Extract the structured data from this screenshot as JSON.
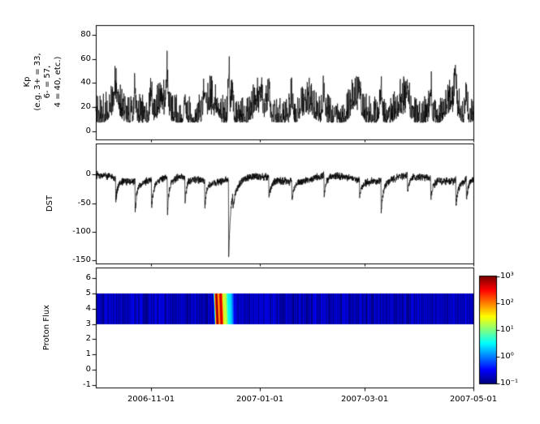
{
  "figure": {
    "background": "#ffffff",
    "frame_color": "#000000"
  },
  "chart_data": {
    "type": "multi-panel-time-series",
    "x_axis": {
      "domain_days": [
        0,
        212
      ],
      "ticks": [
        {
          "day": 31,
          "label": "2006-11-01"
        },
        {
          "day": 92,
          "label": "2007-01-01"
        },
        {
          "day": 151,
          "label": "2007-03-01"
        },
        {
          "day": 212,
          "label": "2007-05-01"
        }
      ]
    },
    "panels": [
      {
        "id": "kp",
        "type": "line",
        "ylabel": "Kp\n(e.g. 3+ = 33,\n6- = 57,\n4 = 40, etc.)",
        "ylim": [
          -7,
          88
        ],
        "yticks": [
          {
            "v": 80,
            "label": "80"
          },
          {
            "v": 60,
            "label": "60"
          },
          {
            "v": 40,
            "label": "40"
          },
          {
            "v": 20,
            "label": "20"
          },
          {
            "v": 0,
            "label": "0"
          }
        ],
        "line_color": "#000000",
        "samples_per_day": 8,
        "seed": 20061214,
        "base_level": 7,
        "recurrence_period_days": 27,
        "recurrence_phase_days": 4,
        "recurrence_amp": 13,
        "noise_amp": 24,
        "storms": [
          {
            "day": 11,
            "amp": 22,
            "width": 0.7
          },
          {
            "day": 22,
            "amp": 26,
            "width": 0.7
          },
          {
            "day": 31,
            "amp": 24,
            "width": 0.8
          },
          {
            "day": 40,
            "amp": 30,
            "width": 0.8
          },
          {
            "day": 50,
            "amp": 24,
            "width": 0.7
          },
          {
            "day": 61,
            "amp": 22,
            "width": 0.8
          },
          {
            "day": 74.7,
            "amp": 60,
            "width": 0.55
          },
          {
            "day": 76.5,
            "amp": 28,
            "width": 0.8
          },
          {
            "day": 97,
            "amp": 26,
            "width": 0.9
          },
          {
            "day": 110,
            "amp": 24,
            "width": 0.8
          },
          {
            "day": 128,
            "amp": 25,
            "width": 0.9
          },
          {
            "day": 148,
            "amp": 22,
            "width": 0.8
          },
          {
            "day": 160,
            "amp": 28,
            "width": 0.8
          },
          {
            "day": 175,
            "amp": 20,
            "width": 0.8
          },
          {
            "day": 188,
            "amp": 26,
            "width": 0.8
          },
          {
            "day": 202,
            "amp": 28,
            "width": 0.7
          },
          {
            "day": 208,
            "amp": 24,
            "width": 0.7
          }
        ]
      },
      {
        "id": "dst",
        "type": "line",
        "ylabel": "DST",
        "ylim": [
          -155,
          54
        ],
        "yticks": [
          {
            "v": 0,
            "label": "0"
          },
          {
            "v": -50,
            "label": "-50"
          },
          {
            "v": -100,
            "label": "-100"
          },
          {
            "v": -150,
            "label": "-150"
          }
        ],
        "line_color": "#000000",
        "samples_per_day": 12,
        "seed": 20061215,
        "base": -6,
        "noise_amp": 8,
        "storms": [
          {
            "day": 11.2,
            "min": -42,
            "recovery_days": 0.9
          },
          {
            "day": 22.1,
            "min": -55,
            "recovery_days": 0.8
          },
          {
            "day": 31.3,
            "min": -48,
            "recovery_days": 1.0
          },
          {
            "day": 40.2,
            "min": -65,
            "recovery_days": 0.9
          },
          {
            "day": 50.1,
            "min": -48,
            "recovery_days": 0.8
          },
          {
            "day": 61.2,
            "min": -44,
            "recovery_days": 1.0
          },
          {
            "day": 74.6,
            "min": -138,
            "recovery_days": 1.0
          },
          {
            "day": 77.0,
            "min": -30,
            "recovery_days": 1.2
          },
          {
            "day": 97.2,
            "min": -38,
            "recovery_days": 1.1
          },
          {
            "day": 110.1,
            "min": -34,
            "recovery_days": 1.0
          },
          {
            "day": 128.2,
            "min": -34,
            "recovery_days": 1.0
          },
          {
            "day": 148.1,
            "min": -32,
            "recovery_days": 1.0
          },
          {
            "day": 160.2,
            "min": -58,
            "recovery_days": 1.0
          },
          {
            "day": 175.0,
            "min": -28,
            "recovery_days": 0.9
          },
          {
            "day": 188.1,
            "min": -40,
            "recovery_days": 0.9
          },
          {
            "day": 202.2,
            "min": -48,
            "recovery_days": 0.9
          },
          {
            "day": 208.1,
            "min": -36,
            "recovery_days": 0.8
          }
        ]
      },
      {
        "id": "proton_flux",
        "type": "heatmap",
        "ylabel": "Proton Flux",
        "ylim": [
          -1.16,
          6.69
        ],
        "yticks": [
          {
            "v": 6,
            "label": "6"
          },
          {
            "v": 5,
            "label": "5"
          },
          {
            "v": 4,
            "label": "4"
          },
          {
            "v": 3,
            "label": "3"
          },
          {
            "v": 2,
            "label": "2"
          },
          {
            "v": 1,
            "label": "1"
          },
          {
            "v": 0,
            "label": "0"
          },
          {
            "v": -1,
            "label": "-1"
          }
        ],
        "band_y": [
          3,
          5
        ],
        "background_flux": 0.14,
        "clim": [
          0.1,
          1000
        ],
        "scale": "log10",
        "colormap": "jet",
        "seed": 1207,
        "events": [
          {
            "day": 68.0,
            "peak": 900,
            "width_days": 0.55,
            "slant": 0.35
          },
          {
            "day": 70.3,
            "peak": 550,
            "width_days": 0.7,
            "slant": 0.3
          },
          {
            "day": 72.6,
            "peak": 22,
            "width_days": 1.0,
            "slant": 0.25
          },
          {
            "day": 75.0,
            "peak": 2.5,
            "width_days": 1.6,
            "slant": 0.15
          }
        ]
      }
    ],
    "colorbar": {
      "colormap": "jet",
      "scale": "log10",
      "ticks": [
        {
          "label": "10³",
          "value": 1000
        },
        {
          "label": "10²",
          "value": 100
        },
        {
          "label": "10¹",
          "value": 10
        },
        {
          "label": "10⁰",
          "value": 1
        },
        {
          "label": "10⁻¹",
          "value": 0.1
        }
      ]
    }
  }
}
